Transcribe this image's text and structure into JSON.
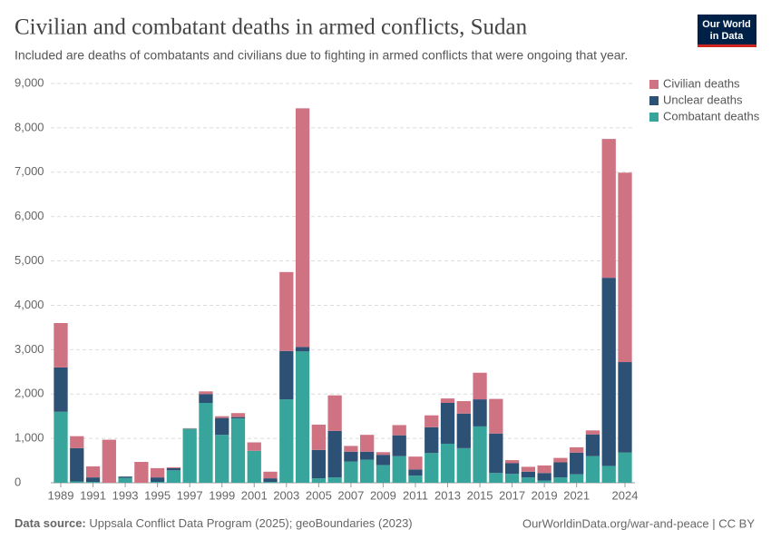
{
  "chart_data": {
    "type": "stacked_bar",
    "title": "Civilian and combatant deaths in armed conflicts, Sudan",
    "subtitle": "Included are deaths of combatants and civilians due to fighting in armed conflicts that were ongoing that year.",
    "source_label": "Data source:",
    "source": "Uppsala Conflict Data Program (2025); geoBoundaries (2023)",
    "url": "OurWorldinData.org/war-and-peace | CC BY",
    "logo": [
      "Our World",
      "in Data"
    ],
    "x": [
      1989,
      1990,
      1991,
      1992,
      1993,
      1994,
      1995,
      1996,
      1997,
      1998,
      1999,
      2000,
      2001,
      2002,
      2003,
      2004,
      2005,
      2006,
      2007,
      2008,
      2009,
      2010,
      2011,
      2012,
      2013,
      2014,
      2015,
      2016,
      2017,
      2018,
      2019,
      2020,
      2021,
      2022,
      2023,
      2024
    ],
    "xticks": [
      1989,
      1991,
      1993,
      1995,
      1997,
      1999,
      2001,
      2003,
      2005,
      2007,
      2009,
      2011,
      2013,
      2015,
      2017,
      2019,
      2021,
      2024
    ],
    "ylim": [
      0,
      9000
    ],
    "yticks": [
      0,
      {
        "value": 1000,
        "label": "1,000"
      },
      {
        "value": 2000,
        "label": "2,000"
      },
      {
        "value": 3000,
        "label": "3,000"
      },
      {
        "value": 4000,
        "label": "4,000"
      },
      {
        "value": 5000,
        "label": "5,000"
      },
      {
        "value": 6000,
        "label": "6,000"
      },
      {
        "value": 7000,
        "label": "7,000"
      },
      {
        "value": 8000,
        "label": "8,000"
      },
      {
        "value": 9000,
        "label": "9,000"
      }
    ],
    "grid": true,
    "legend": "right",
    "series": [
      {
        "name": "Combatant deaths",
        "color": "#38a59c",
        "values": [
          1600,
          30,
          20,
          0,
          110,
          0,
          20,
          280,
          1220,
          1800,
          1080,
          1450,
          720,
          20,
          1880,
          2960,
          100,
          120,
          480,
          520,
          400,
          600,
          160,
          670,
          880,
          780,
          1270,
          220,
          200,
          120,
          50,
          120,
          190,
          600,
          380,
          680
        ]
      },
      {
        "name": "Unclear deaths",
        "color": "#2d5075",
        "values": [
          1000,
          750,
          100,
          0,
          30,
          0,
          100,
          50,
          0,
          200,
          380,
          30,
          0,
          80,
          1090,
          100,
          640,
          1050,
          220,
          180,
          230,
          470,
          140,
          580,
          920,
          780,
          610,
          890,
          240,
          130,
          170,
          340,
          490,
          490,
          4240,
          2040
        ]
      },
      {
        "name": "Civilian deaths",
        "color": "#cf7282",
        "values": [
          1000,
          270,
          250,
          970,
          0,
          470,
          210,
          20,
          10,
          60,
          40,
          90,
          190,
          150,
          1780,
          5380,
          570,
          800,
          130,
          380,
          60,
          230,
          290,
          270,
          100,
          280,
          600,
          780,
          70,
          110,
          170,
          100,
          120,
          90,
          3130,
          4270
        ]
      }
    ]
  }
}
